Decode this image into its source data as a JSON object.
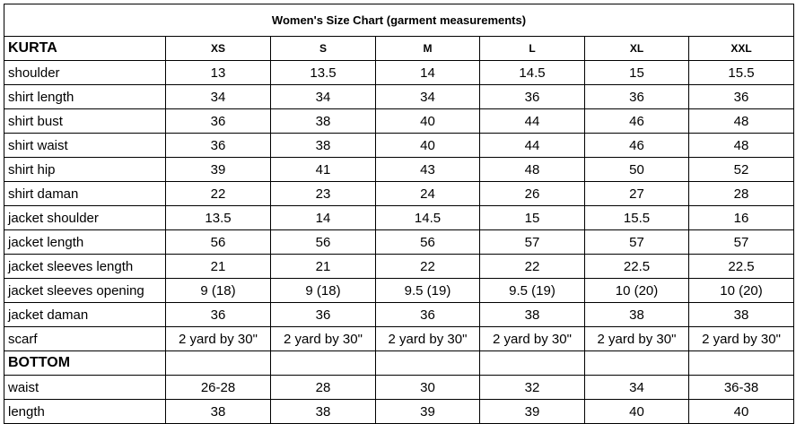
{
  "title": "Women's Size Chart (garment measurements)",
  "kurta": {
    "label": "KURTA",
    "sizes": [
      "XS",
      "S",
      "M",
      "L",
      "XL",
      "XXL"
    ],
    "rows": [
      {
        "label": "shoulder",
        "values": [
          "13",
          "13.5",
          "14",
          "14.5",
          "15",
          "15.5"
        ]
      },
      {
        "label": "shirt length",
        "values": [
          "34",
          "34",
          "34",
          "36",
          "36",
          "36"
        ]
      },
      {
        "label": "shirt bust",
        "values": [
          "36",
          "38",
          "40",
          "44",
          "46",
          "48"
        ]
      },
      {
        "label": "shirt waist",
        "values": [
          "36",
          "38",
          "40",
          "44",
          "46",
          "48"
        ]
      },
      {
        "label": "shirt hip",
        "values": [
          "39",
          "41",
          "43",
          "48",
          "50",
          "52"
        ]
      },
      {
        "label": "shirt daman",
        "values": [
          "22",
          "23",
          "24",
          "26",
          "27",
          "28"
        ]
      },
      {
        "label": "jacket shoulder",
        "values": [
          "13.5",
          "14",
          "14.5",
          "15",
          "15.5",
          "16"
        ]
      },
      {
        "label": "jacket length",
        "values": [
          "56",
          "56",
          "56",
          "57",
          "57",
          "57"
        ]
      },
      {
        "label": "jacket sleeves length",
        "values": [
          "21",
          "21",
          "22",
          "22",
          "22.5",
          "22.5"
        ]
      },
      {
        "label": "jacket sleeves opening",
        "values": [
          "9 (18)",
          "9 (18)",
          "9.5 (19)",
          "9.5 (19)",
          "10 (20)",
          "10 (20)"
        ]
      },
      {
        "label": "jacket daman",
        "values": [
          "36",
          "36",
          "36",
          "38",
          "38",
          "38"
        ]
      },
      {
        "label": "scarf",
        "values": [
          "2 yard by 30\"",
          "2 yard by 30\"",
          "2 yard by 30\"",
          "2 yard by 30\"",
          "2 yard by 30\"",
          "2 yard by 30\""
        ]
      }
    ]
  },
  "bottom": {
    "label": "BOTTOM",
    "rows": [
      {
        "label": "waist",
        "values": [
          "26-28",
          "28",
          "30",
          "32",
          "34",
          "36-38"
        ]
      },
      {
        "label": "length",
        "values": [
          "38",
          "38",
          "39",
          "39",
          "40",
          "40"
        ]
      }
    ]
  }
}
